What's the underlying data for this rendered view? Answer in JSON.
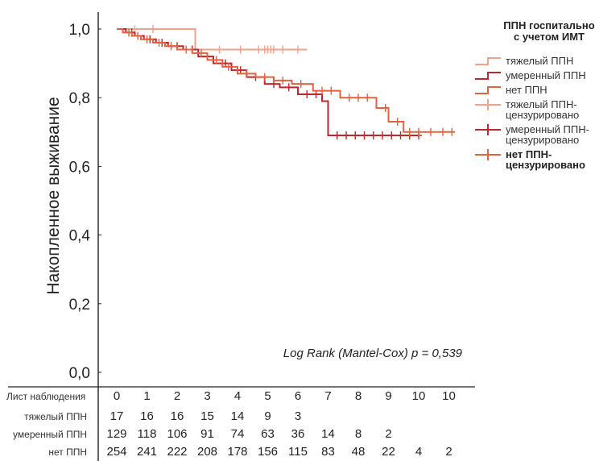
{
  "chart_data": {
    "type": "line",
    "subtype": "kaplan-meier",
    "ylabel": "Накопленное выживание",
    "xlabel": "",
    "ylim": [
      0,
      1.0
    ],
    "xlim": [
      0,
      10
    ],
    "y_ticks": [
      "0,0",
      "0,2",
      "0,4",
      "0,6",
      "0,8",
      "1,0"
    ],
    "y_tick_values": [
      0,
      0.2,
      0.4,
      0.6,
      0.8,
      1.0
    ],
    "grid": false,
    "annotation": "Log Rank (Mantel-Cox) p = 0,539",
    "legend": {
      "title_lines": [
        "ППН госпитально",
        "с учетом ИМТ"
      ],
      "placement": "right",
      "entries": [
        {
          "lines": [
            "тяжелый ППН"
          ],
          "kind": "line",
          "color": "#f4a08a",
          "bold": false
        },
        {
          "lines": [
            "умеренный ППН"
          ],
          "kind": "line",
          "color": "#c0272d",
          "bold": false
        },
        {
          "lines": [
            "нет ППН"
          ],
          "kind": "line",
          "color": "#e8603c",
          "bold": false
        },
        {
          "lines": [
            "тяжелый ППН-",
            "цензурировано"
          ],
          "kind": "cross",
          "color": "#f4a08a",
          "bold": false
        },
        {
          "lines": [
            "умеренный ППН-",
            "цензурировано"
          ],
          "kind": "cross",
          "color": "#c0272d",
          "bold": false
        },
        {
          "lines": [
            "нет ППН-",
            "цензурировано"
          ],
          "kind": "cross",
          "color": "#e8603c",
          "bold": true
        }
      ]
    },
    "series": [
      {
        "name": "тяжелый ППН",
        "color": "#f4a08a",
        "steps": [
          [
            0,
            1.0
          ],
          [
            2.6,
            1.0
          ],
          [
            2.6,
            0.94
          ],
          [
            6.3,
            0.94
          ]
        ],
        "censored": [
          [
            0.6,
            1.0
          ],
          [
            1.2,
            1.0
          ],
          [
            3.4,
            0.94
          ],
          [
            4.1,
            0.94
          ],
          [
            4.7,
            0.94
          ],
          [
            4.9,
            0.94
          ],
          [
            5.0,
            0.94
          ],
          [
            5.1,
            0.94
          ],
          [
            5.2,
            0.94
          ],
          [
            5.5,
            0.94
          ],
          [
            6.0,
            0.94
          ]
        ]
      },
      {
        "name": "умеренный ППН",
        "color": "#c0272d",
        "steps": [
          [
            0,
            1.0
          ],
          [
            0.3,
            0.99
          ],
          [
            0.6,
            0.98
          ],
          [
            0.9,
            0.97
          ],
          [
            1.3,
            0.96
          ],
          [
            1.7,
            0.95
          ],
          [
            2.2,
            0.94
          ],
          [
            2.7,
            0.92
          ],
          [
            3.2,
            0.9
          ],
          [
            3.8,
            0.88
          ],
          [
            4.3,
            0.86
          ],
          [
            4.9,
            0.84
          ],
          [
            5.4,
            0.83
          ],
          [
            6.0,
            0.81
          ],
          [
            6.8,
            0.79
          ],
          [
            7.0,
            0.69
          ],
          [
            10.0,
            0.69
          ]
        ],
        "censored": [
          [
            0.5,
            0.99
          ],
          [
            1.1,
            0.97
          ],
          [
            1.5,
            0.96
          ],
          [
            2.0,
            0.95
          ],
          [
            2.5,
            0.94
          ],
          [
            3.0,
            0.92
          ],
          [
            3.6,
            0.9
          ],
          [
            4.1,
            0.88
          ],
          [
            4.6,
            0.86
          ],
          [
            5.2,
            0.84
          ],
          [
            5.7,
            0.83
          ],
          [
            6.3,
            0.81
          ],
          [
            6.6,
            0.81
          ],
          [
            7.3,
            0.69
          ],
          [
            7.6,
            0.69
          ],
          [
            7.9,
            0.69
          ],
          [
            8.2,
            0.69
          ],
          [
            8.5,
            0.69
          ],
          [
            8.8,
            0.69
          ],
          [
            9.1,
            0.69
          ],
          [
            9.4,
            0.69
          ],
          [
            9.7,
            0.69
          ],
          [
            10.0,
            0.69
          ]
        ]
      },
      {
        "name": "нет ППН",
        "color": "#e8603c",
        "steps": [
          [
            0,
            1.0
          ],
          [
            0.2,
            0.99
          ],
          [
            0.5,
            0.98
          ],
          [
            0.8,
            0.97
          ],
          [
            1.2,
            0.96
          ],
          [
            1.6,
            0.95
          ],
          [
            2.0,
            0.94
          ],
          [
            2.5,
            0.93
          ],
          [
            3.0,
            0.91
          ],
          [
            3.5,
            0.89
          ],
          [
            4.0,
            0.87
          ],
          [
            4.6,
            0.86
          ],
          [
            5.2,
            0.85
          ],
          [
            5.8,
            0.84
          ],
          [
            6.5,
            0.82
          ],
          [
            7.4,
            0.8
          ],
          [
            8.6,
            0.77
          ],
          [
            9.0,
            0.73
          ],
          [
            9.5,
            0.7
          ],
          [
            11.2,
            0.7
          ]
        ],
        "censored": [
          [
            0.4,
            0.99
          ],
          [
            0.7,
            0.98
          ],
          [
            1.0,
            0.97
          ],
          [
            1.4,
            0.96
          ],
          [
            1.8,
            0.95
          ],
          [
            2.3,
            0.94
          ],
          [
            2.8,
            0.93
          ],
          [
            3.3,
            0.91
          ],
          [
            3.7,
            0.89
          ],
          [
            4.3,
            0.87
          ],
          [
            4.9,
            0.86
          ],
          [
            5.5,
            0.85
          ],
          [
            6.1,
            0.84
          ],
          [
            6.8,
            0.82
          ],
          [
            7.1,
            0.82
          ],
          [
            7.7,
            0.8
          ],
          [
            8.0,
            0.8
          ],
          [
            8.3,
            0.8
          ],
          [
            8.9,
            0.77
          ],
          [
            9.3,
            0.73
          ],
          [
            9.7,
            0.7
          ],
          [
            10.0,
            0.7
          ],
          [
            10.4,
            0.7
          ],
          [
            10.8,
            0.7
          ],
          [
            11.1,
            0.7
          ]
        ]
      }
    ],
    "risk_table": {
      "header_label": "Лист наблюдения",
      "header_values": [
        "0",
        "1",
        "2",
        "3",
        "4",
        "5",
        "6",
        "7",
        "8",
        "9",
        "10",
        "10"
      ],
      "rows": [
        {
          "label": "тяжелый ППН",
          "values": [
            "17",
            "16",
            "16",
            "15",
            "14",
            "9",
            "3"
          ]
        },
        {
          "label": "умеренный ППН",
          "values": [
            "129",
            "118",
            "106",
            "91",
            "74",
            "63",
            "36",
            "14",
            "8",
            "2"
          ]
        },
        {
          "label": "нет ППН",
          "values": [
            "254",
            "241",
            "222",
            "208",
            "178",
            "156",
            "115",
            "83",
            "48",
            "22",
            "4",
            "2"
          ]
        }
      ]
    }
  }
}
